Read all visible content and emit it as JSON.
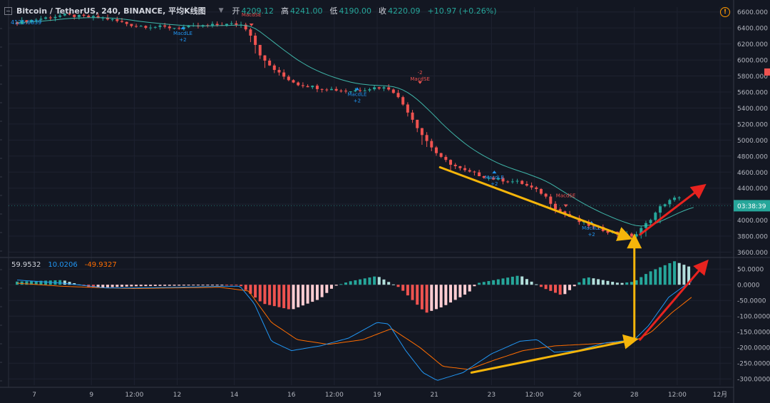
{
  "header": {
    "symbol": "Bitcoin / TetherUS, 240, BINANCE, 平均K线图",
    "open_label": "开",
    "open": "4209.12",
    "high_label": "高",
    "high": "4241.00",
    "low_label": "低",
    "low": "4190.00",
    "close_label": "收",
    "close": "4220.09",
    "change": "+10.97 (+0.26%)"
  },
  "icons": {
    "collapse": "minus-box-icon",
    "dropdown": "chevron-down-icon",
    "alert": "warning-circle-icon"
  },
  "colors": {
    "background": "#131722",
    "up": "#26a69a",
    "down": "#ef5350",
    "macd_line": "#2196f3",
    "signal_line": "#ff6d00",
    "arrow_yellow": "#f5b50a",
    "arrow_red": "#e8231f",
    "price_tag": "#26a69a"
  },
  "chart_data": {
    "price_panel": {
      "type": "candlestick",
      "y_ticks": [
        "6600.000",
        "6400.000",
        "6200.000",
        "6000.000",
        "5800.000",
        "5600.000",
        "5400.000",
        "5200.000",
        "5000.000",
        "4800.000",
        "4600.000",
        "4400.000",
        "4200.000",
        "4000.000",
        "3800.000",
        "3600.000"
      ],
      "ylim": [
        3560,
        6660
      ],
      "x_ticks": [
        {
          "label": "7",
          "d": 7
        },
        {
          "label": "9",
          "d": 9
        },
        {
          "label": "12:00",
          "d": 10.5
        },
        {
          "label": "12",
          "d": 12
        },
        {
          "label": "14",
          "d": 14
        },
        {
          "label": "16",
          "d": 16
        },
        {
          "label": "12:00",
          "d": 17.5
        },
        {
          "label": "19",
          "d": 19
        },
        {
          "label": "21",
          "d": 21
        },
        {
          "label": "23",
          "d": 23
        },
        {
          "label": "12:00",
          "d": 24.5
        },
        {
          "label": "26",
          "d": 26
        },
        {
          "label": "28",
          "d": 28
        },
        {
          "label": "12:00",
          "d": 29.5
        },
        {
          "label": "12月",
          "d": 31
        }
      ],
      "xlim": [
        6.1,
        31.4
      ],
      "current_price_tag": "03:38:39",
      "left_readout": "4125.6839",
      "series_points": [
        [
          6.4,
          6470
        ],
        [
          8,
          6560
        ],
        [
          9.5,
          6520
        ],
        [
          10.5,
          6430
        ],
        [
          12,
          6400
        ],
        [
          13.5,
          6440
        ],
        [
          14.2,
          6450
        ],
        [
          14.5,
          6370
        ],
        [
          15,
          6000
        ],
        [
          15.6,
          5820
        ],
        [
          16.2,
          5700
        ],
        [
          17,
          5650
        ],
        [
          18,
          5610
        ],
        [
          19,
          5660
        ],
        [
          19.5,
          5640
        ],
        [
          20,
          5400
        ],
        [
          20.6,
          5050
        ],
        [
          21.2,
          4780
        ],
        [
          22,
          4620
        ],
        [
          23,
          4520
        ],
        [
          24,
          4470
        ],
        [
          24.8,
          4330
        ],
        [
          25.3,
          4130
        ],
        [
          26,
          3990
        ],
        [
          26.7,
          3900
        ],
        [
          27.4,
          3830
        ],
        [
          28,
          3800
        ],
        [
          28.4,
          3950
        ],
        [
          29,
          4200
        ],
        [
          29.6,
          4300
        ]
      ],
      "markers": [
        {
          "label": "MacdSE",
          "d": 14.6,
          "price": 6420,
          "dir": "down"
        },
        {
          "label": "MacdLE\n+2",
          "d": 12.2,
          "price": 6330,
          "dir": "up"
        },
        {
          "label": "MacdLE\n+2",
          "d": 18.3,
          "price": 5570,
          "dir": "up"
        },
        {
          "label": "-2\nMacdSE",
          "d": 20.5,
          "price": 5700,
          "dir": "down"
        },
        {
          "label": "MacdLE\n+2",
          "d": 23.1,
          "price": 4530,
          "dir": "up"
        },
        {
          "label": "MacdSE",
          "d": 25.6,
          "price": 4160,
          "dir": "down"
        },
        {
          "label": "MacdLE\n+2",
          "d": 26.5,
          "price": 3900,
          "dir": "up"
        }
      ]
    },
    "macd_panel": {
      "type": "histogram+line",
      "legend_values": [
        "59.9532",
        "10.0206",
        "-49.9327"
      ],
      "y_ticks": [
        "50.0000",
        "0.0000",
        "-50.0000",
        "-100.0000",
        "-150.0000",
        "-200.0000",
        "-250.0000",
        "-300.0000"
      ],
      "ylim": [
        -320,
        80
      ],
      "histogram_points": [
        [
          6.4,
          10
        ],
        [
          8,
          15
        ],
        [
          9,
          -10
        ],
        [
          10.5,
          -5
        ],
        [
          12,
          -3
        ],
        [
          13.5,
          -1
        ],
        [
          14.2,
          -2
        ],
        [
          15,
          -60
        ],
        [
          16,
          -80
        ],
        [
          17,
          -45
        ],
        [
          17.5,
          -5
        ],
        [
          18,
          10
        ],
        [
          19,
          28
        ],
        [
          19.8,
          -10
        ],
        [
          20.7,
          -90
        ],
        [
          21.3,
          -70
        ],
        [
          22.2,
          -25
        ],
        [
          22.5,
          5
        ],
        [
          24,
          30
        ],
        [
          24.8,
          -10
        ],
        [
          25.5,
          -35
        ],
        [
          26.3,
          25
        ],
        [
          27.5,
          5
        ],
        [
          28,
          10
        ],
        [
          28.5,
          40
        ],
        [
          29.4,
          75
        ],
        [
          30,
          55
        ]
      ],
      "macd_points": [
        [
          6.4,
          15
        ],
        [
          8,
          5
        ],
        [
          9.5,
          -10
        ],
        [
          10.5,
          -10
        ],
        [
          12,
          -8
        ],
        [
          13.5,
          -5
        ],
        [
          14.2,
          -5
        ],
        [
          14.7,
          -60
        ],
        [
          15.3,
          -180
        ],
        [
          16,
          -210
        ],
        [
          17,
          -195
        ],
        [
          18,
          -170
        ],
        [
          19,
          -120
        ],
        [
          19.4,
          -125
        ],
        [
          20,
          -210
        ],
        [
          20.6,
          -280
        ],
        [
          21.1,
          -305
        ],
        [
          22,
          -280
        ],
        [
          23,
          -220
        ],
        [
          24,
          -180
        ],
        [
          24.6,
          -175
        ],
        [
          25.2,
          -215
        ],
        [
          26,
          -210
        ],
        [
          27,
          -185
        ],
        [
          28,
          -175
        ],
        [
          28.5,
          -130
        ],
        [
          29.2,
          -40
        ],
        [
          29.8,
          0
        ],
        [
          30,
          10
        ]
      ],
      "signal_points": [
        [
          6.4,
          5
        ],
        [
          8,
          -5
        ],
        [
          9.5,
          -10
        ],
        [
          10.5,
          -12
        ],
        [
          12,
          -10
        ],
        [
          13.5,
          -8
        ],
        [
          14.5,
          -20
        ],
        [
          15.3,
          -120
        ],
        [
          16.2,
          -175
        ],
        [
          17.3,
          -190
        ],
        [
          18.5,
          -175
        ],
        [
          19.5,
          -140
        ],
        [
          20.5,
          -200
        ],
        [
          21.3,
          -260
        ],
        [
          22.2,
          -270
        ],
        [
          23.1,
          -240
        ],
        [
          24.1,
          -210
        ],
        [
          25.2,
          -195
        ],
        [
          26.2,
          -190
        ],
        [
          27.2,
          -185
        ],
        [
          28,
          -180
        ],
        [
          28.6,
          -150
        ],
        [
          29.3,
          -90
        ],
        [
          30,
          -40
        ]
      ]
    },
    "annotations": [
      {
        "panel": "price",
        "type": "arrow",
        "color": "yellow",
        "from": [
          21.2,
          4660
        ],
        "to": [
          27.8,
          3780
        ]
      },
      {
        "panel": "price",
        "type": "arrow",
        "color": "red",
        "from": [
          28.2,
          3820
        ],
        "to": [
          30.4,
          4420
        ]
      },
      {
        "panel": "macd",
        "type": "arrow",
        "color": "yellow",
        "from": [
          22.3,
          -280
        ],
        "to": [
          28,
          -175
        ]
      },
      {
        "panel": "macd",
        "type": "arrow",
        "color": "red",
        "from": [
          28.2,
          -175
        ],
        "to": [
          30.5,
          70
        ]
      },
      {
        "panel": "both",
        "type": "arrow",
        "color": "yellow",
        "from": [
          28,
          -175
        ],
        "to": [
          28,
          3780
        ]
      }
    ]
  }
}
